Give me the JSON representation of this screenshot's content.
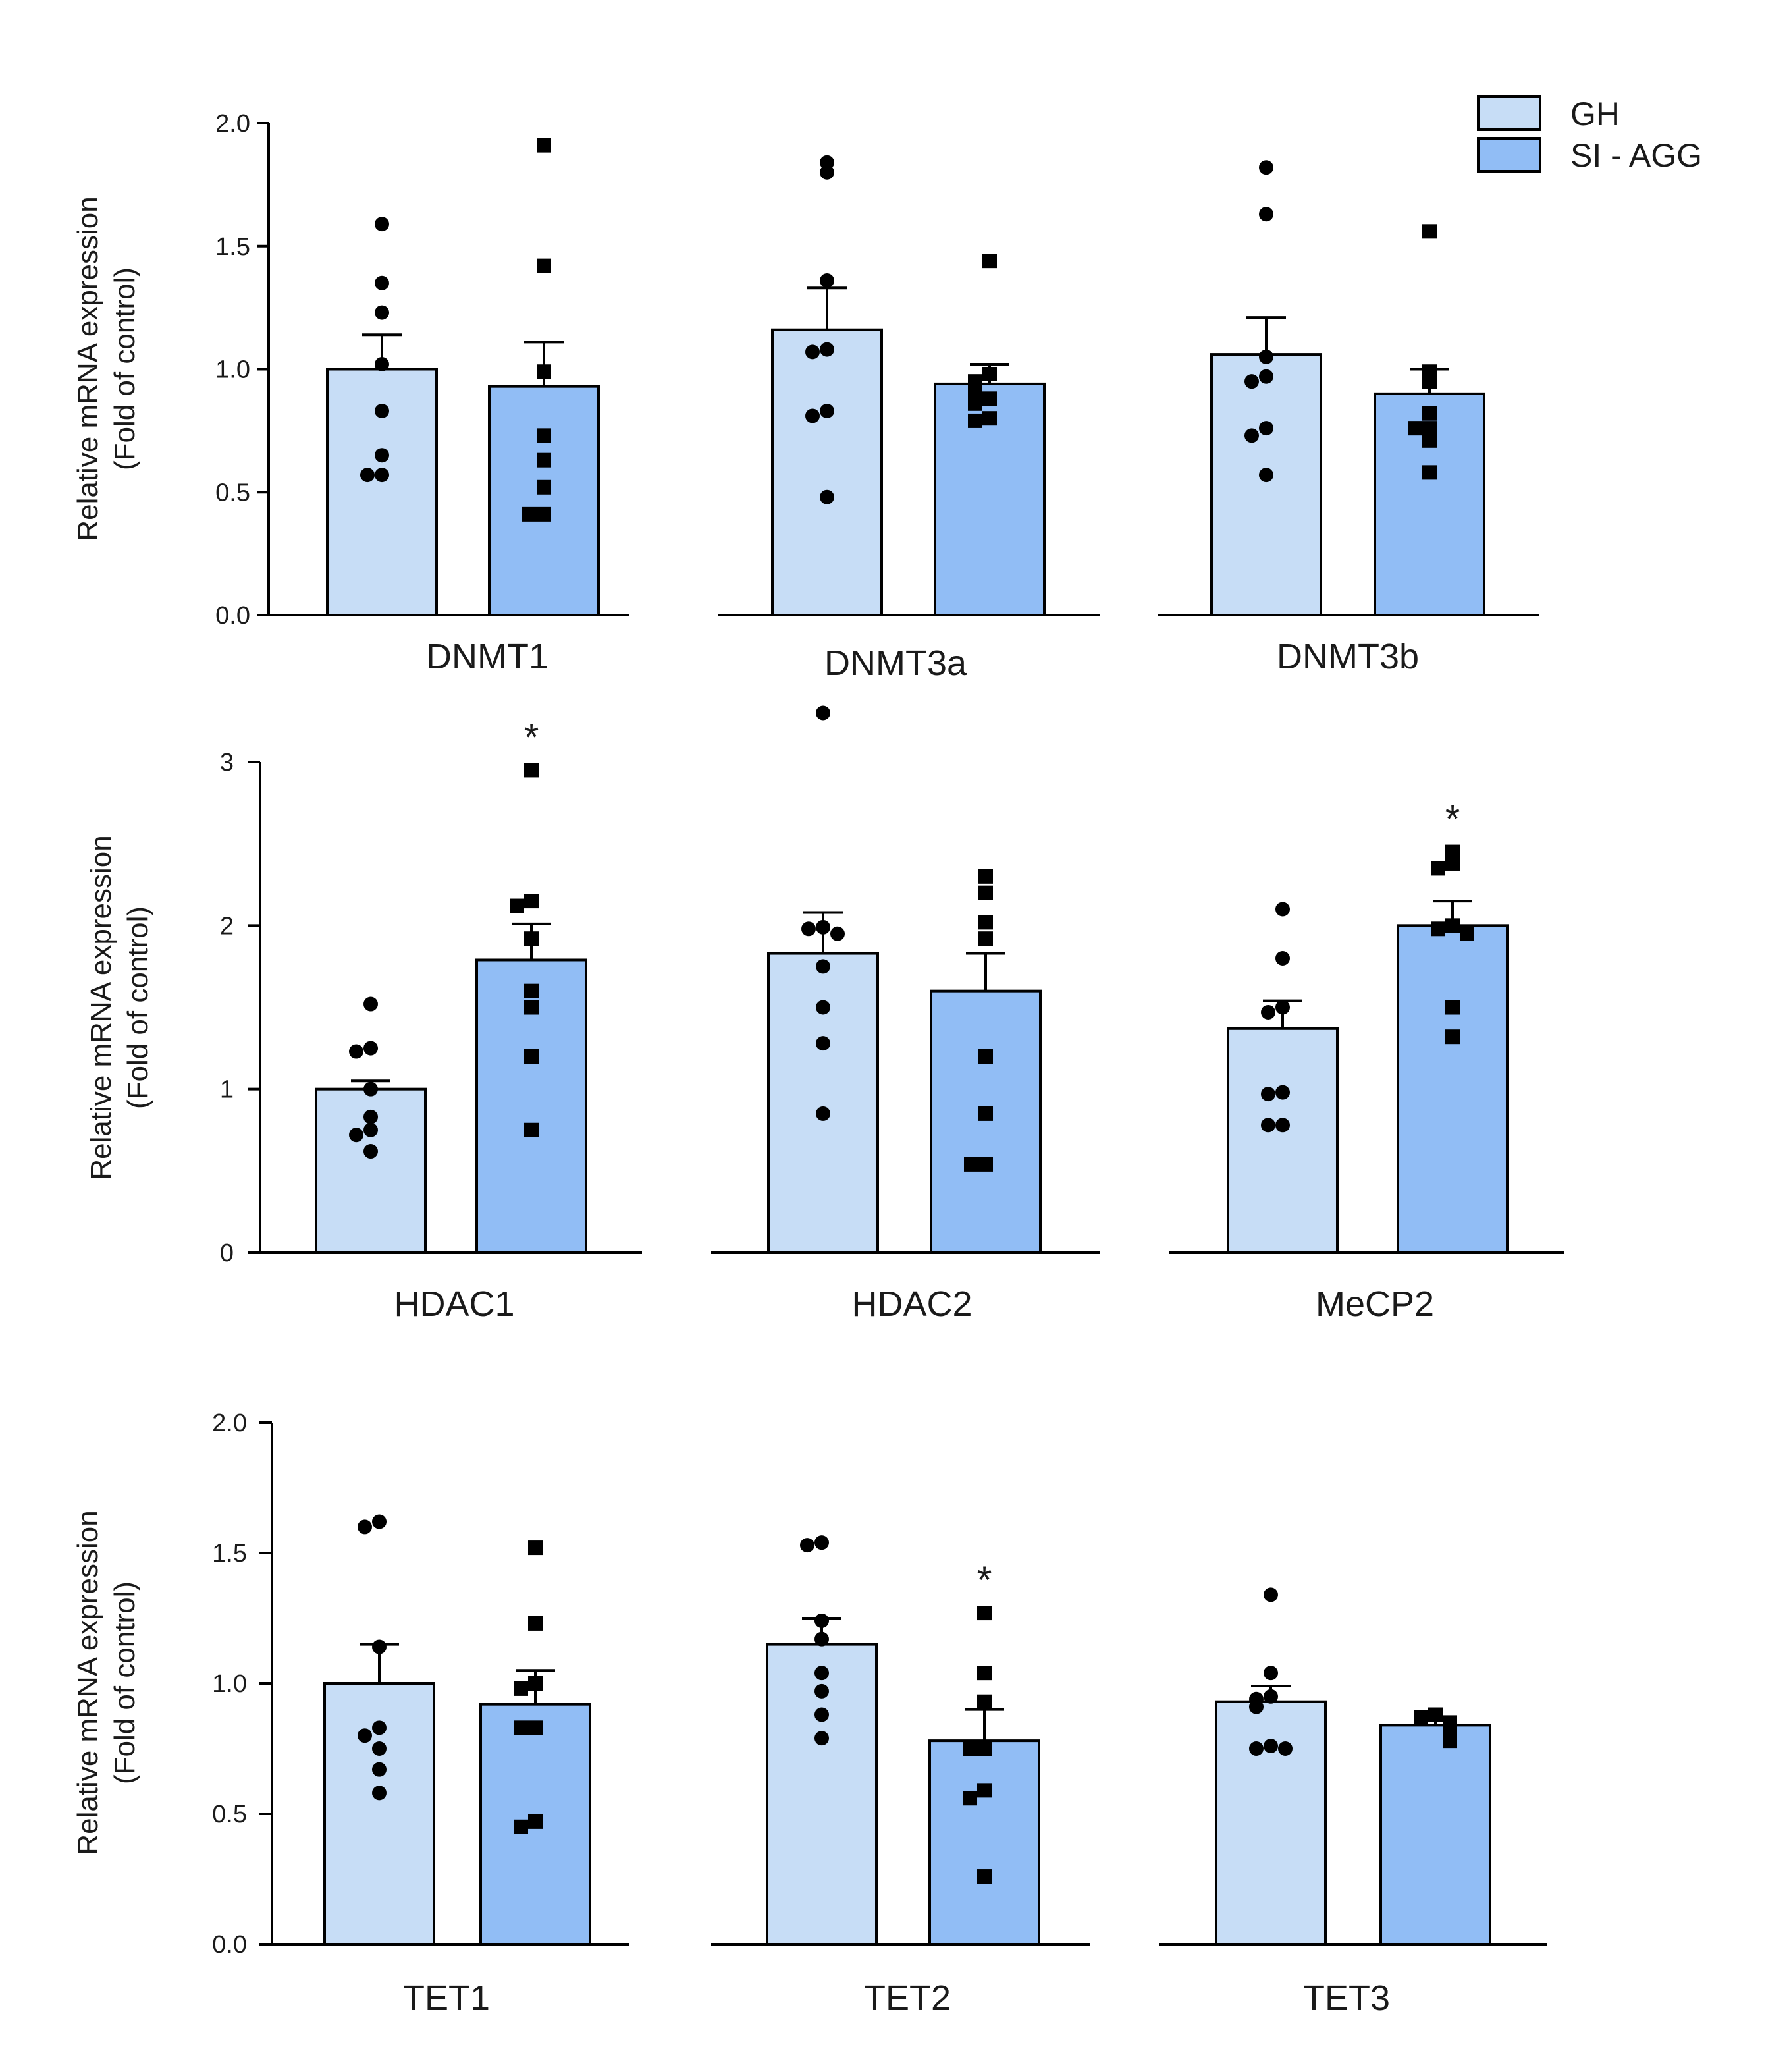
{
  "legend": [
    {
      "name": "GH",
      "color": "#c7ddf6"
    },
    {
      "name": "SI - AGG",
      "color": "#91bdf5"
    }
  ],
  "colors": {
    "gh": "#c7ddf6",
    "si_agg": "#91bdf5",
    "axis": "#000000",
    "point": "#000000"
  },
  "chart_data": [
    {
      "type": "bar",
      "row": 0,
      "ylabel": [
        "Relative mRNA expression",
        "(Fold of control)"
      ],
      "ylim": [
        0,
        2.0
      ],
      "yticks": [
        "0.0",
        "0.5",
        "1.0",
        "1.5",
        "2.0"
      ],
      "ytick_values": [
        0,
        0.5,
        1.0,
        1.5,
        2.0
      ],
      "panels": [
        {
          "gene": "DNMT1",
          "series": [
            {
              "name": "GH",
              "mean": 1.0,
              "sem": 0.14,
              "points": [
                1.59,
                1.35,
                1.23,
                1.02,
                0.83,
                0.65,
                0.57,
                0.57
              ],
              "sig": ""
            },
            {
              "name": "SI - AGG",
              "mean": 0.93,
              "sem": 0.18,
              "points": [
                1.91,
                1.42,
                0.99,
                0.73,
                0.63,
                0.52,
                0.41,
                0.41
              ],
              "sig": ""
            }
          ]
        },
        {
          "gene": "DNMT3a",
          "series": [
            {
              "name": "GH",
              "mean": 1.16,
              "sem": 0.17,
              "points": [
                1.84,
                1.8,
                1.36,
                1.08,
                1.07,
                0.83,
                0.81,
                0.48
              ],
              "sig": ""
            },
            {
              "name": "SI - AGG",
              "mean": 0.94,
              "sem": 0.08,
              "points": [
                1.44,
                0.98,
                0.95,
                0.92,
                0.88,
                0.86,
                0.8,
                0.79
              ],
              "sig": ""
            }
          ]
        },
        {
          "gene": "DNMT3b",
          "series": [
            {
              "name": "GH",
              "mean": 1.06,
              "sem": 0.15,
              "points": [
                1.82,
                1.63,
                1.05,
                0.97,
                0.95,
                0.76,
                0.73,
                0.57
              ],
              "sig": ""
            },
            {
              "name": "SI - AGG",
              "mean": 0.9,
              "sem": 0.1,
              "points": [
                1.56,
                0.99,
                0.95,
                0.82,
                0.76,
                0.76,
                0.71,
                0.58
              ],
              "sig": ""
            }
          ]
        }
      ]
    },
    {
      "type": "bar",
      "row": 1,
      "ylabel": [
        "Relative mRNA expression",
        "(Fold of control)"
      ],
      "ylim": [
        0,
        3
      ],
      "yticks": [
        "0",
        "1",
        "2",
        "3"
      ],
      "ytick_values": [
        0,
        1,
        2,
        3
      ],
      "panels": [
        {
          "gene": "HDAC1",
          "series": [
            {
              "name": "GH",
              "mean": 1.0,
              "sem": 0.05,
              "points": [
                1.52,
                1.25,
                1.23,
                1.0,
                0.83,
                0.75,
                0.72,
                0.62
              ],
              "sig": ""
            },
            {
              "name": "SI - AGG",
              "mean": 1.79,
              "sem": 0.22,
              "points": [
                2.95,
                2.15,
                2.12,
                1.92,
                1.6,
                1.5,
                1.2,
                0.75
              ],
              "sig": "*"
            }
          ]
        },
        {
          "gene": "HDAC2",
          "series": [
            {
              "name": "GH",
              "mean": 1.83,
              "sem": 0.25,
              "points": [
                3.3,
                1.99,
                1.98,
                1.95,
                1.75,
                1.5,
                1.28,
                0.85
              ],
              "sig": ""
            },
            {
              "name": "SI - AGG",
              "mean": 1.6,
              "sem": 0.23,
              "points": [
                2.3,
                2.2,
                2.02,
                1.92,
                1.2,
                0.85,
                0.54,
                0.54
              ],
              "sig": ""
            }
          ]
        },
        {
          "gene": "MeCP2",
          "series": [
            {
              "name": "GH",
              "mean": 1.37,
              "sem": 0.17,
              "points": [
                2.1,
                1.8,
                1.5,
                1.47,
                0.98,
                0.97,
                0.78,
                0.78
              ],
              "sig": ""
            },
            {
              "name": "SI - AGG",
              "mean": 2.0,
              "sem": 0.15,
              "points": [
                2.45,
                2.38,
                2.35,
                2.0,
                1.98,
                1.95,
                1.5,
                1.32
              ],
              "sig": "*"
            }
          ]
        }
      ]
    },
    {
      "type": "bar",
      "row": 2,
      "ylabel": [
        "Relative mRNA expression",
        "(Fold of control)"
      ],
      "ylim": [
        0,
        2.0
      ],
      "yticks": [
        "0.0",
        "0.5",
        "1.0",
        "1.5",
        "2.0"
      ],
      "ytick_values": [
        0,
        0.5,
        1.0,
        1.5,
        2.0
      ],
      "panels": [
        {
          "gene": "TET1",
          "series": [
            {
              "name": "GH",
              "mean": 1.0,
              "sem": 0.15,
              "points": [
                1.62,
                1.6,
                1.14,
                0.83,
                0.8,
                0.75,
                0.67,
                0.58
              ],
              "sig": ""
            },
            {
              "name": "SI - AGG",
              "mean": 0.92,
              "sem": 0.13,
              "points": [
                1.52,
                1.23,
                1.0,
                0.98,
                0.83,
                0.83,
                0.47,
                0.45
              ],
              "sig": ""
            }
          ]
        },
        {
          "gene": "TET2",
          "series": [
            {
              "name": "GH",
              "mean": 1.15,
              "sem": 0.1,
              "points": [
                1.54,
                1.53,
                1.24,
                1.17,
                1.04,
                0.97,
                0.88,
                0.79
              ],
              "sig": ""
            },
            {
              "name": "SI - AGG",
              "mean": 0.78,
              "sem": 0.12,
              "points": [
                1.27,
                1.04,
                0.93,
                0.75,
                0.75,
                0.59,
                0.56,
                0.26
              ],
              "sig": "*"
            }
          ]
        },
        {
          "gene": "TET3",
          "series": [
            {
              "name": "GH",
              "mean": 0.93,
              "sem": 0.06,
              "points": [
                1.34,
                1.04,
                0.95,
                0.94,
                0.91,
                0.76,
                0.75,
                0.75
              ],
              "sig": ""
            },
            {
              "name": "SI - AGG",
              "mean": 0.84,
              "sem": 0.02,
              "points": [
                0.88,
                0.87,
                0.85,
                0.84,
                0.83,
                0.81,
                0.8,
                0.78
              ],
              "sig": ""
            }
          ]
        }
      ]
    }
  ]
}
